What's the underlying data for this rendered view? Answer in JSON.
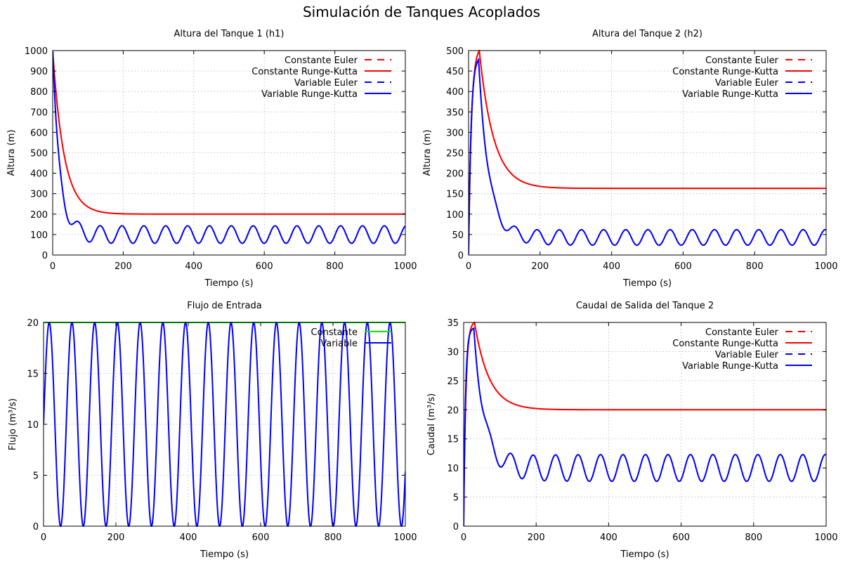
{
  "figure": {
    "title": "Simulación de Tanques Acoplados"
  },
  "colors": {
    "constante": "#ff0000",
    "variable": "#0000ff",
    "constante_flujo": "#00ee00",
    "grid": "#b8b8b8",
    "frame": "#000000"
  },
  "chart_data": [
    {
      "type": "line",
      "title": "Altura del Tanque 1 (h1)",
      "xlabel": "Tiempo (s)",
      "ylabel": "Altura (m)",
      "xlim": [
        0,
        1000
      ],
      "ylim": [
        0,
        1000
      ],
      "xticks": [
        0,
        200,
        400,
        600,
        800,
        1000
      ],
      "yticks": [
        0,
        100,
        200,
        300,
        400,
        500,
        600,
        700,
        800,
        900,
        1000
      ],
      "grid": true,
      "legend_position": "top-right",
      "series": [
        {
          "name": "Constante Euler",
          "color": "constante",
          "dash": true,
          "model": {
            "kind": "decay",
            "y0": 1000,
            "yss": 200,
            "tau": 32
          }
        },
        {
          "name": "Constante Runge-Kutta",
          "color": "constante",
          "dash": false,
          "model": {
            "kind": "decay",
            "y0": 1000,
            "yss": 200,
            "tau": 32
          }
        },
        {
          "name": "Variable Euler",
          "color": "variable",
          "dash": true,
          "model": {
            "kind": "decay_osc",
            "y0": 1000,
            "tau": 20,
            "mean": 100,
            "amp": 45,
            "period": 62,
            "phase": 0.5
          }
        },
        {
          "name": "Variable Runge-Kutta",
          "color": "variable",
          "dash": false,
          "model": {
            "kind": "decay_osc",
            "y0": 1000,
            "tau": 20,
            "mean": 100,
            "amp": 45,
            "period": 62,
            "phase": 0.5
          }
        }
      ]
    },
    {
      "type": "line",
      "title": "Altura del Tanque 2 (h2)",
      "xlabel": "Tiempo (s)",
      "ylabel": "Altura (m)",
      "xlim": [
        0,
        1000
      ],
      "ylim": [
        0,
        500
      ],
      "xticks": [
        0,
        200,
        400,
        600,
        800,
        1000
      ],
      "yticks": [
        0,
        50,
        100,
        150,
        200,
        250,
        300,
        350,
        400,
        450,
        500
      ],
      "grid": true,
      "legend_position": "top-right",
      "series": [
        {
          "name": "Constante Euler",
          "color": "constante",
          "dash": true,
          "model": {
            "kind": "rise_settle",
            "peak_t": 30,
            "peak": 500,
            "yss": 163,
            "tau": 40,
            "rise_tau": 8
          }
        },
        {
          "name": "Constante Runge-Kutta",
          "color": "constante",
          "dash": false,
          "model": {
            "kind": "rise_settle",
            "peak_t": 30,
            "peak": 500,
            "yss": 163,
            "tau": 40,
            "rise_tau": 8
          }
        },
        {
          "name": "Variable Euler",
          "color": "variable",
          "dash": true,
          "model": {
            "kind": "rise_osc",
            "peak_t": 28,
            "peak": 478,
            "mean": 43,
            "amp": 19,
            "period": 62,
            "tau": 28,
            "rise_tau": 7,
            "phase": 1.0
          }
        },
        {
          "name": "Variable Runge-Kutta",
          "color": "variable",
          "dash": false,
          "model": {
            "kind": "rise_osc",
            "peak_t": 28,
            "peak": 478,
            "mean": 43,
            "amp": 19,
            "period": 62,
            "tau": 28,
            "rise_tau": 7,
            "phase": 1.0
          }
        }
      ]
    },
    {
      "type": "line",
      "title": "Flujo de Entrada",
      "xlabel": "Tiempo (s)",
      "ylabel": "Flujo (m³/s)",
      "xlim": [
        0,
        1000
      ],
      "ylim": [
        0,
        20
      ],
      "xticks": [
        0,
        200,
        400,
        600,
        800,
        1000
      ],
      "yticks": [
        0,
        5,
        10,
        15,
        20
      ],
      "grid": true,
      "legend_position": "top-right",
      "series": [
        {
          "name": "Constante",
          "color": "constante_flujo",
          "dash": false,
          "model": {
            "kind": "const",
            "value": 20
          }
        },
        {
          "name": "Variable",
          "color": "variable",
          "dash": false,
          "model": {
            "kind": "sine",
            "mean": 10,
            "amp": 10,
            "period": 62.8,
            "phase": 0
          }
        }
      ]
    },
    {
      "type": "line",
      "title": "Caudal de Salida del Tanque 2",
      "xlabel": "Tiempo (s)",
      "ylabel": "Caudal (m³/s)",
      "xlim": [
        0,
        1000
      ],
      "ylim": [
        0,
        35
      ],
      "xticks": [
        0,
        200,
        400,
        600,
        800,
        1000
      ],
      "yticks": [
        0,
        5,
        10,
        15,
        20,
        25,
        30,
        35
      ],
      "grid": true,
      "legend_position": "top-right",
      "series": [
        {
          "name": "Constante Euler",
          "color": "constante",
          "dash": true,
          "model": {
            "kind": "rise_settle",
            "peak_t": 30,
            "peak": 35,
            "yss": 20,
            "tau": 40,
            "rise_tau": 6
          }
        },
        {
          "name": "Constante Runge-Kutta",
          "color": "constante",
          "dash": false,
          "model": {
            "kind": "rise_settle",
            "peak_t": 30,
            "peak": 35,
            "yss": 20,
            "tau": 40,
            "rise_tau": 6
          }
        },
        {
          "name": "Variable Euler",
          "color": "variable",
          "dash": true,
          "model": {
            "kind": "rise_osc",
            "peak_t": 28,
            "peak": 34,
            "mean": 10,
            "amp": 2.3,
            "period": 62,
            "tau": 28,
            "rise_tau": 5,
            "phase": 1.0
          }
        },
        {
          "name": "Variable Runge-Kutta",
          "color": "variable",
          "dash": false,
          "model": {
            "kind": "rise_osc",
            "peak_t": 28,
            "peak": 34,
            "mean": 10,
            "amp": 2.3,
            "period": 62,
            "tau": 28,
            "rise_tau": 5,
            "phase": 1.0
          }
        }
      ]
    }
  ]
}
